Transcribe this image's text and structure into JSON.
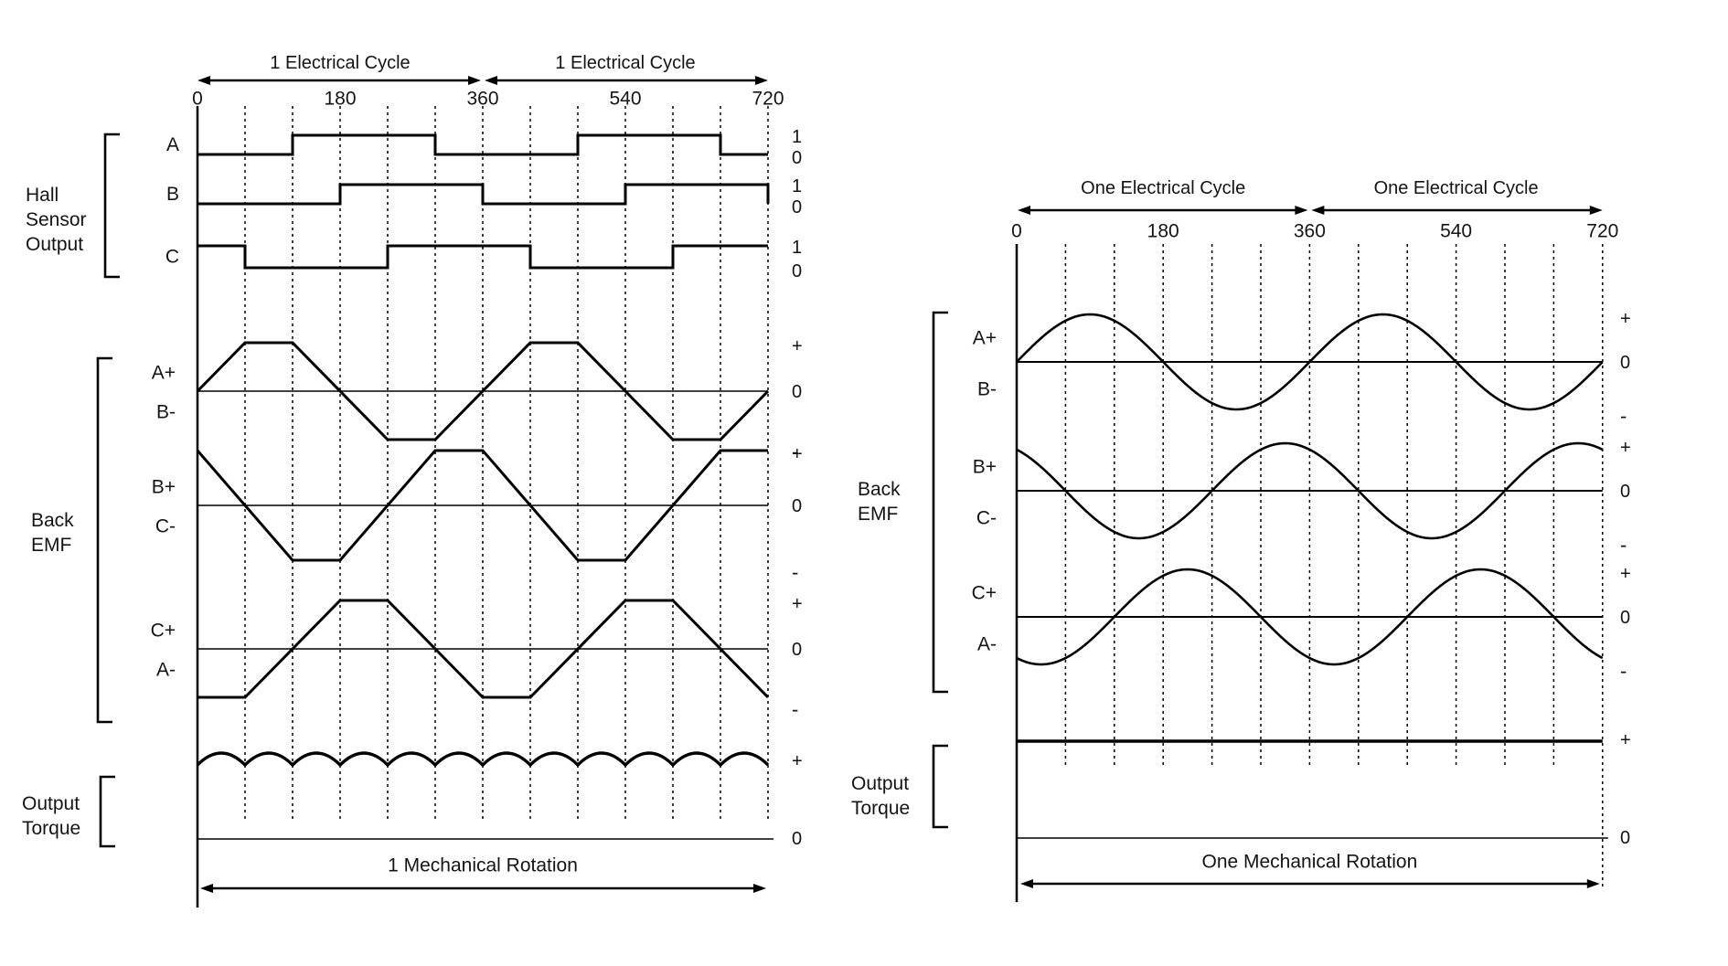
{
  "colors": {
    "ink": "#141414",
    "line": "#000000",
    "background": "#ffffff"
  },
  "left_panel": {
    "cycle_labels": [
      "1 Electrical Cycle",
      "1 Electrical Cycle"
    ],
    "axis_ticks": [
      {
        "label": "0",
        "deg": 0
      },
      {
        "label": "180",
        "deg": 180
      },
      {
        "label": "360",
        "deg": 360
      },
      {
        "label": "540",
        "deg": 540
      },
      {
        "label": "720",
        "deg": 720
      }
    ],
    "dashed_step_deg": 60,
    "group_hall": {
      "line1": "Hall",
      "line2": "Sensor",
      "line3": "Output"
    },
    "group_emf": {
      "line1": "Back",
      "line2": "EMF"
    },
    "group_torque": {
      "line1": "Output",
      "line2": "Torque"
    },
    "hall_signals": [
      {
        "name": "A",
        "high_label": "1",
        "low_label": "0",
        "end_drop": false,
        "steps": [
          [
            0,
            0
          ],
          [
            120,
            1
          ],
          [
            300,
            0
          ],
          [
            480,
            1
          ],
          [
            660,
            0
          ]
        ]
      },
      {
        "name": "B",
        "high_label": "1",
        "low_label": "0",
        "end_drop": true,
        "steps": [
          [
            0,
            0
          ],
          [
            180,
            1
          ],
          [
            360,
            0
          ],
          [
            540,
            1
          ]
        ]
      },
      {
        "name": "C",
        "high_label": "1",
        "low_label": "0",
        "end_drop": false,
        "steps": [
          [
            0,
            1
          ],
          [
            60,
            0
          ],
          [
            240,
            1
          ],
          [
            420,
            0
          ],
          [
            600,
            1
          ]
        ]
      }
    ],
    "emf_signals": [
      {
        "pos_label": "A+",
        "neg_label": "B-",
        "plus": "+",
        "zero": "0",
        "minus": "-",
        "points": [
          [
            0,
            0
          ],
          [
            60,
            1
          ],
          [
            120,
            1
          ],
          [
            240,
            -1
          ],
          [
            300,
            -1
          ],
          [
            420,
            1
          ],
          [
            480,
            1
          ],
          [
            600,
            -1
          ],
          [
            660,
            -1
          ],
          [
            720,
            0
          ]
        ]
      },
      {
        "pos_label": "B+",
        "neg_label": "C-",
        "plus": "+",
        "zero": "0",
        "minus": "-",
        "points": [
          [
            0,
            1
          ],
          [
            120,
            -1
          ],
          [
            180,
            -1
          ],
          [
            300,
            1
          ],
          [
            360,
            1
          ],
          [
            480,
            -1
          ],
          [
            540,
            -1
          ],
          [
            660,
            1
          ],
          [
            720,
            1
          ]
        ]
      },
      {
        "pos_label": "C+",
        "neg_label": "A-",
        "plus": "+",
        "zero": "0",
        "minus": "-",
        "points": [
          [
            0,
            -1
          ],
          [
            60,
            -1
          ],
          [
            180,
            1
          ],
          [
            240,
            1
          ],
          [
            360,
            -1
          ],
          [
            420,
            -1
          ],
          [
            540,
            1
          ],
          [
            600,
            1
          ],
          [
            720,
            -1
          ]
        ]
      }
    ],
    "torque": {
      "style": "ripple",
      "arc_count": 12,
      "plus": "+",
      "zero": "0"
    },
    "mech_label": "1 Mechanical Rotation"
  },
  "right_panel": {
    "cycle_labels": [
      "One Electrical Cycle",
      "One Electrical Cycle"
    ],
    "axis_ticks": [
      {
        "label": "0",
        "deg": 0
      },
      {
        "label": "180",
        "deg": 180
      },
      {
        "label": "360",
        "deg": 360
      },
      {
        "label": "540",
        "deg": 540
      },
      {
        "label": "720",
        "deg": 720
      }
    ],
    "dashed_step_deg": 60,
    "group_emf": {
      "line1": "Back",
      "line2": "EMF"
    },
    "group_torque": {
      "line1": "Output",
      "line2": "Torque"
    },
    "emf_signals": [
      {
        "pos_label": "A+",
        "neg_label": "B-",
        "plus": "+",
        "zero": "0",
        "minus": "-",
        "phase_deg": 0
      },
      {
        "pos_label": "B+",
        "neg_label": "C-",
        "plus": "+",
        "zero": "0",
        "minus": "-",
        "phase_deg": 120
      },
      {
        "pos_label": "C+",
        "neg_label": "A-",
        "plus": "+",
        "zero": "0",
        "minus": "-",
        "phase_deg": 240
      }
    ],
    "torque": {
      "style": "flat",
      "plus": "+",
      "zero": "0"
    },
    "mech_label": "One Mechanical Rotation"
  },
  "chart_data": [
    {
      "type": "line",
      "title": "Trapezoidal back-EMF commutation (left panel)",
      "x_range_deg": [
        0,
        720
      ],
      "x_ticks": [
        0,
        180,
        360,
        540,
        720
      ],
      "series": [
        {
          "name": "Hall A",
          "kind": "digital",
          "high_intervals_deg": [
            [
              120,
              300
            ],
            [
              480,
              660
            ]
          ]
        },
        {
          "name": "Hall B",
          "kind": "digital",
          "high_intervals_deg": [
            [
              180,
              360
            ],
            [
              540,
              720
            ]
          ]
        },
        {
          "name": "Hall C",
          "kind": "digital",
          "high_intervals_deg": [
            [
              0,
              60
            ],
            [
              240,
              420
            ],
            [
              600,
              720
            ]
          ]
        },
        {
          "name": "Back EMF A+/B-",
          "kind": "trapezoid",
          "points": [
            [
              0,
              0
            ],
            [
              60,
              1
            ],
            [
              120,
              1
            ],
            [
              240,
              -1
            ],
            [
              300,
              -1
            ],
            [
              420,
              1
            ],
            [
              480,
              1
            ],
            [
              600,
              -1
            ],
            [
              660,
              -1
            ],
            [
              720,
              0
            ]
          ]
        },
        {
          "name": "Back EMF B+/C-",
          "kind": "trapezoid",
          "points": [
            [
              0,
              1
            ],
            [
              120,
              -1
            ],
            [
              180,
              -1
            ],
            [
              300,
              1
            ],
            [
              360,
              1
            ],
            [
              480,
              -1
            ],
            [
              540,
              -1
            ],
            [
              660,
              1
            ],
            [
              720,
              1
            ]
          ]
        },
        {
          "name": "Back EMF C+/A-",
          "kind": "trapezoid",
          "points": [
            [
              0,
              -1
            ],
            [
              60,
              -1
            ],
            [
              180,
              1
            ],
            [
              240,
              1
            ],
            [
              360,
              -1
            ],
            [
              420,
              -1
            ],
            [
              540,
              1
            ],
            [
              600,
              1
            ],
            [
              720,
              -1
            ]
          ]
        },
        {
          "name": "Output Torque",
          "kind": "ripple",
          "arcs": 12,
          "level": "+"
        }
      ]
    },
    {
      "type": "line",
      "title": "Sinusoidal back-EMF (right panel)",
      "x_range_deg": [
        0,
        720
      ],
      "x_ticks": [
        0,
        180,
        360,
        540,
        720
      ],
      "series": [
        {
          "name": "Back EMF A+/B-",
          "kind": "sine",
          "phase_deg": 0,
          "amplitude": 1
        },
        {
          "name": "Back EMF B+/C-",
          "kind": "sine",
          "phase_deg": 120,
          "amplitude": 1
        },
        {
          "name": "Back EMF C+/A-",
          "kind": "sine",
          "phase_deg": 240,
          "amplitude": 1
        },
        {
          "name": "Output Torque",
          "kind": "constant",
          "level": "+"
        }
      ]
    }
  ]
}
